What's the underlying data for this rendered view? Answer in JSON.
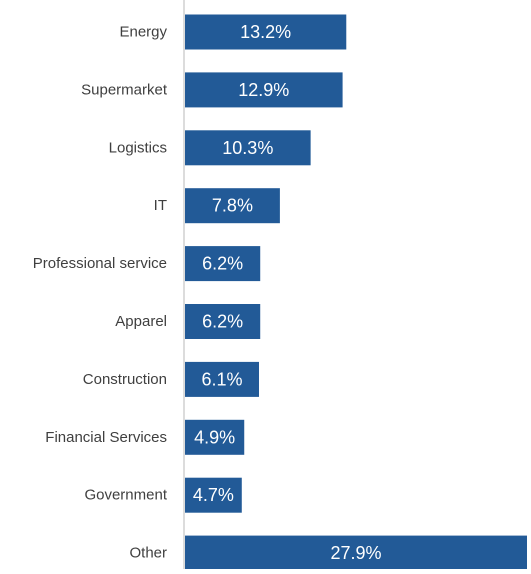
{
  "chart_data": {
    "type": "bar",
    "orientation": "horizontal",
    "categories": [
      "Energy",
      "Supermarket",
      "Logistics",
      "IT",
      "Professional service",
      "Apparel",
      "Construction",
      "Financial Services",
      "Government",
      "Other"
    ],
    "values": [
      13.2,
      12.9,
      10.3,
      7.8,
      6.2,
      6.2,
      6.1,
      4.9,
      4.7,
      27.9
    ],
    "data_labels": [
      "13.2%",
      "12.9%",
      "10.3%",
      "7.8%",
      "6.2%",
      "6.2%",
      "6.1%",
      "4.9%",
      "4.7%",
      "27.9%"
    ],
    "xlim": [
      0,
      27.9
    ],
    "grid": false,
    "legend": "none",
    "bar_color": "#225A97",
    "label_color": "#ffffff",
    "category_label_color": "#3f3f3f",
    "axis_color": "#c9c9c9"
  }
}
